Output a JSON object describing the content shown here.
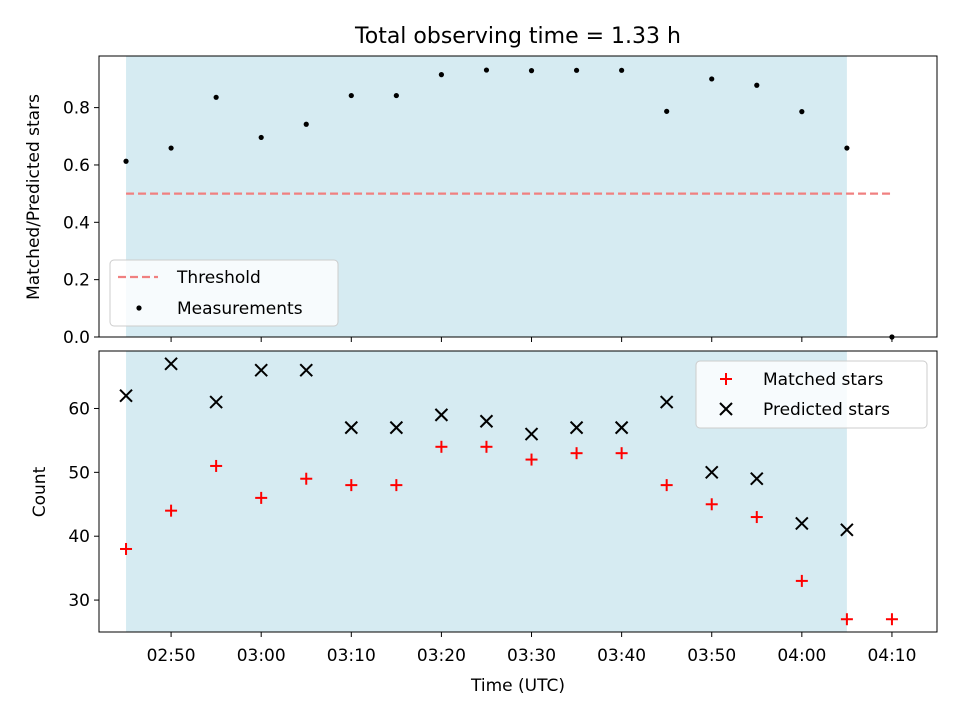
{
  "chart_data": [
    {
      "type": "scatter",
      "title": "Total observing time = 1.33 h",
      "ylabel": "Matched/Predicted stars",
      "ylim": [
        0,
        0.98
      ],
      "yticks": [
        0.0,
        0.2,
        0.4,
        0.6,
        0.8
      ],
      "ytick_labels": [
        "0.0",
        "0.2",
        "0.4",
        "0.6",
        "0.8"
      ],
      "xlim": [
        "02:42",
        "04:15"
      ],
      "shaded_span": [
        "02:45",
        "04:05"
      ],
      "threshold": {
        "name": "Threshold",
        "value": 0.5,
        "x_range": [
          "02:45",
          "04:10"
        ],
        "color": "#f08080",
        "style": "dashed"
      },
      "series": [
        {
          "name": "Measurements",
          "color": "#000000",
          "marker": "dot",
          "x": [
            "02:45",
            "02:50",
            "02:55",
            "03:00",
            "03:05",
            "03:10",
            "03:15",
            "03:20",
            "03:25",
            "03:30",
            "03:35",
            "03:40",
            "03:45",
            "03:50",
            "03:55",
            "04:00",
            "04:05",
            "04:10"
          ],
          "values": [
            0.613,
            0.659,
            0.836,
            0.696,
            0.742,
            0.842,
            0.842,
            0.915,
            0.931,
            0.929,
            0.93,
            0.93,
            0.787,
            0.9,
            0.878,
            0.786,
            0.659,
            0.0
          ]
        }
      ],
      "legend": {
        "position": "lower-left",
        "entries": [
          "Threshold",
          "Measurements"
        ]
      }
    },
    {
      "type": "scatter",
      "ylabel": "Count",
      "xlabel": "Time (UTC)",
      "ylim": [
        25,
        69
      ],
      "yticks": [
        30,
        40,
        50,
        60
      ],
      "ytick_labels": [
        "30",
        "40",
        "50",
        "60"
      ],
      "xlim": [
        "02:42",
        "04:15"
      ],
      "xtick_labels": [
        "02:50",
        "03:00",
        "03:10",
        "03:20",
        "03:30",
        "03:40",
        "03:50",
        "04:00",
        "04:10"
      ],
      "shaded_span": [
        "02:45",
        "04:05"
      ],
      "series": [
        {
          "name": "Matched stars",
          "color": "#ff0000",
          "marker": "plus",
          "x": [
            "02:45",
            "02:50",
            "02:55",
            "03:00",
            "03:05",
            "03:10",
            "03:15",
            "03:20",
            "03:25",
            "03:30",
            "03:35",
            "03:40",
            "03:45",
            "03:50",
            "03:55",
            "04:00",
            "04:05",
            "04:10"
          ],
          "values": [
            38,
            44,
            51,
            46,
            49,
            48,
            48,
            54,
            54,
            52,
            53,
            53,
            48,
            45,
            43,
            33,
            27,
            27
          ]
        },
        {
          "name": "Predicted stars",
          "color": "#000000",
          "marker": "x",
          "x": [
            "02:45",
            "02:50",
            "02:55",
            "03:00",
            "03:05",
            "03:10",
            "03:15",
            "03:20",
            "03:25",
            "03:30",
            "03:35",
            "03:40",
            "03:45",
            "03:50",
            "03:55",
            "04:00",
            "04:05"
          ],
          "values": [
            62,
            67,
            61,
            66,
            66,
            57,
            57,
            59,
            58,
            56,
            57,
            57,
            61,
            50,
            49,
            42,
            41
          ]
        }
      ],
      "legend": {
        "position": "upper-right",
        "entries": [
          "Matched stars",
          "Predicted stars"
        ]
      }
    }
  ],
  "colors": {
    "shade": "#add8e6",
    "threshold": "#f08080",
    "matched": "#ff0000",
    "predicted": "#000000"
  }
}
